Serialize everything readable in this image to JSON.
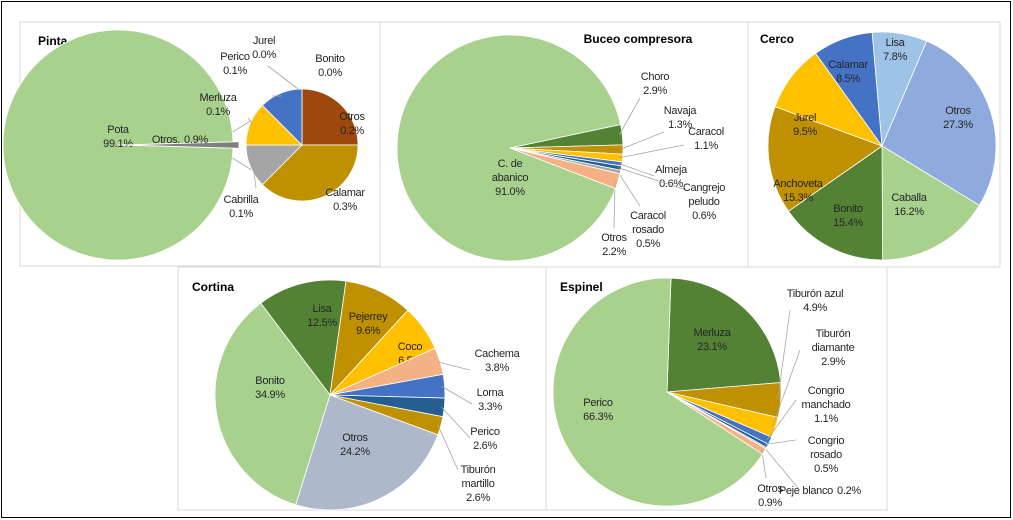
{
  "chart_data": [
    {
      "type": "pie",
      "title": "Pinta",
      "categories": [
        "Pota",
        "Otros."
      ],
      "values": [
        99.1,
        0.9
      ],
      "value_labels": [
        "99.1%",
        "0.9%"
      ],
      "colors": [
        "#a9d18e",
        "#7f7f7f"
      ],
      "breakdown": {
        "categories": [
          "Jurel",
          "Bonito",
          "Otros",
          "Calamar",
          "Cabrilla",
          "Merluza",
          "Perico"
        ],
        "values": [
          0.0,
          0.0,
          0.2,
          0.3,
          0.1,
          0.1,
          0.1
        ],
        "value_labels": [
          "0.0%",
          "0.0%",
          "0.2%",
          "0.3%",
          "0.1%",
          "0.1%",
          "0.1%"
        ],
        "colors": [
          "#70ad47",
          "#255e91",
          "#9e480e",
          "#bf9000",
          "#a5a5a5",
          "#ffc000",
          "#4472c4"
        ]
      }
    },
    {
      "type": "pie",
      "title": "Buceo compresora",
      "categories": [
        "Choro",
        "Navaja",
        "Caracol",
        "Almeja",
        "Cangrejo peludo",
        "Caracol rosado",
        "Otros",
        "C. de abanico"
      ],
      "values": [
        2.9,
        1.3,
        1.1,
        0.6,
        0.6,
        0.5,
        2.2,
        91.0
      ],
      "value_labels": [
        "2.9%",
        "1.3%",
        "1.1%",
        "0.6%",
        "0.6%",
        "0.5%",
        "2.2%",
        "91.0%"
      ],
      "colors": [
        "#548235",
        "#bf9000",
        "#ffc000",
        "#4472c4",
        "#255e91",
        "#a5a5a5",
        "#f4b183",
        "#a9d18e"
      ]
    },
    {
      "type": "pie",
      "title": "Cerco",
      "categories": [
        "Lisa",
        "Otros",
        "Caballa",
        "Bonito",
        "Anchoveta",
        "Jurel",
        "Calamar"
      ],
      "values": [
        7.8,
        27.3,
        16.2,
        15.4,
        15.3,
        9.5,
        8.5
      ],
      "value_labels": [
        "7.8%",
        "27.3%",
        "16.2%",
        "15.4%",
        "15.3%",
        "9.5%",
        "8.5%"
      ],
      "colors": [
        "#9dc3e6",
        "#8faadc",
        "#a9d18e",
        "#548235",
        "#bf9000",
        "#ffc000",
        "#4472c4"
      ]
    },
    {
      "type": "pie",
      "title": "Cortina",
      "categories": [
        "Lisa",
        "Pejerrey",
        "Coco",
        "Cachema",
        "Lorna",
        "Perico",
        "Tiburón martillo",
        "Otros",
        "Bonito"
      ],
      "values": [
        12.5,
        9.6,
        6.5,
        3.8,
        3.3,
        2.6,
        2.6,
        24.2,
        34.9
      ],
      "value_labels": [
        "12.5%",
        "9.6%",
        "6.5%",
        "3.8%",
        "3.3%",
        "2.6%",
        "2.6%",
        "24.2%",
        "34.9%"
      ],
      "colors": [
        "#548235",
        "#bf9000",
        "#ffc000",
        "#f4b183",
        "#4472c4",
        "#255e91",
        "#bf9000",
        "#adb9ca",
        "#a9d18e"
      ]
    },
    {
      "type": "pie",
      "title": "Espinel",
      "categories": [
        "Merluza",
        "Tiburón azul",
        "Tiburón diamante",
        "Congrio manchado",
        "Congrio rosado",
        "Peje blanco",
        "Otros",
        "Perico"
      ],
      "values": [
        23.1,
        4.9,
        2.9,
        1.1,
        0.5,
        0.2,
        0.9,
        66.3
      ],
      "value_labels": [
        "23.1%",
        "4.9%",
        "2.9%",
        "1.1%",
        "0.5%",
        "0.2%",
        "0.9%",
        "66.3%"
      ],
      "colors": [
        "#548235",
        "#bf9000",
        "#ffc000",
        "#4472c4",
        "#255e91",
        "#a5a5a5",
        "#f4b183",
        "#a9d18e"
      ]
    }
  ]
}
